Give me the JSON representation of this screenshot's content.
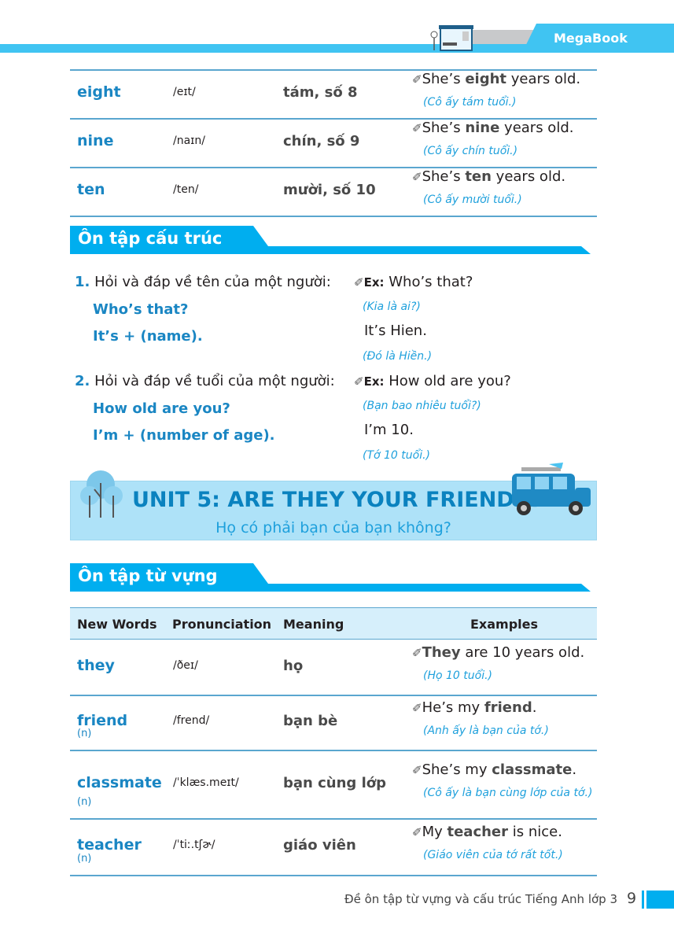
{
  "header": {
    "brand": "MegaBook"
  },
  "top_rows": [
    {
      "word": "eight",
      "pron": "/eɪt/",
      "meaning": "tám, số 8",
      "ex_pre": "She’s ",
      "ex_bold": "eight",
      "ex_post": " years old.",
      "translation": "(Cô ấy tám tuổi.)"
    },
    {
      "word": "nine",
      "pron": "/naɪn/",
      "meaning": "chín, số 9",
      "ex_pre": "She’s ",
      "ex_bold": "nine",
      "ex_post": " years old.",
      "translation": "(Cô ấy chín tuổi.)"
    },
    {
      "word": "ten",
      "pron": "/ten/",
      "meaning": "mười, số 10",
      "ex_pre": "She’s ",
      "ex_bold": "ten",
      "ex_post": " years old.",
      "translation": "(Cô ấy mười tuổi.)"
    }
  ],
  "structure": {
    "title": "Ôn tập cấu trúc",
    "items": [
      {
        "num": "1.",
        "desc": "Hỏi và đáp về tên của một người:",
        "q": "Who’s that?",
        "a": "It’s + (name).",
        "ex_label": "Ex:",
        "ex_q": "Who’s that?",
        "ex_q_tr": "(Kia là ai?)",
        "ex_a": "It’s Hien.",
        "ex_a_tr": "(Đó là Hiền.)"
      },
      {
        "num": "2.",
        "desc": "Hỏi và đáp về tuổi của một người:",
        "q": "How old are you?",
        "a": "I’m + (number of age).",
        "ex_label": "Ex:",
        "ex_q": "How old are you?",
        "ex_q_tr": "(Bạn bao nhiêu tuổi?)",
        "ex_a": "I’m 10.",
        "ex_a_tr": "(Tớ 10 tuổi.)"
      }
    ]
  },
  "unit": {
    "title": "UNIT 5: ARE THEY YOUR FRIENDS?",
    "subtitle": "Họ có phải bạn của bạn không?"
  },
  "vocab": {
    "title": "Ôn tập từ vựng",
    "headers": [
      "New Words",
      "Pronunciation",
      "Meaning",
      "Examples"
    ],
    "rows": [
      {
        "word": "they",
        "pos": "",
        "pron": "/ðeɪ/",
        "meaning": "họ",
        "ex_pre": "",
        "ex_bold": "They",
        "ex_post": " are 10 years old.",
        "translation": "(Họ 10 tuổi.)"
      },
      {
        "word": "friend",
        "pos": "(n)",
        "pron": "/frend/",
        "meaning": "bạn bè",
        "ex_pre": "He’s my ",
        "ex_bold": "friend",
        "ex_post": ".",
        "translation": "(Anh ấy là bạn của tớ.)"
      },
      {
        "word": "classmate",
        "pos": "(n)",
        "pron": "/ˈklæs.meɪt/",
        "meaning": "bạn cùng lớp",
        "ex_pre": "She’s my ",
        "ex_bold": "classmate",
        "ex_post": ".",
        "translation": "(Cô ấy là bạn cùng lớp của tớ.)"
      },
      {
        "word": "teacher",
        "pos": "(n)",
        "pron": "/ˈtiː.tʃɚ/",
        "meaning": "giáo viên",
        "ex_pre": "My ",
        "ex_bold": "teacher",
        "ex_post": " is nice.",
        "translation": "(Giáo viên của tớ rất tốt.)"
      }
    ]
  },
  "footer": {
    "text": "Đề ôn tập từ vựng và cấu trúc Tiếng Anh lớp 3",
    "page": "9"
  },
  "colors": {
    "accent": "#00aeef",
    "word": "#1a86c3",
    "translation": "#1ea0dc"
  }
}
